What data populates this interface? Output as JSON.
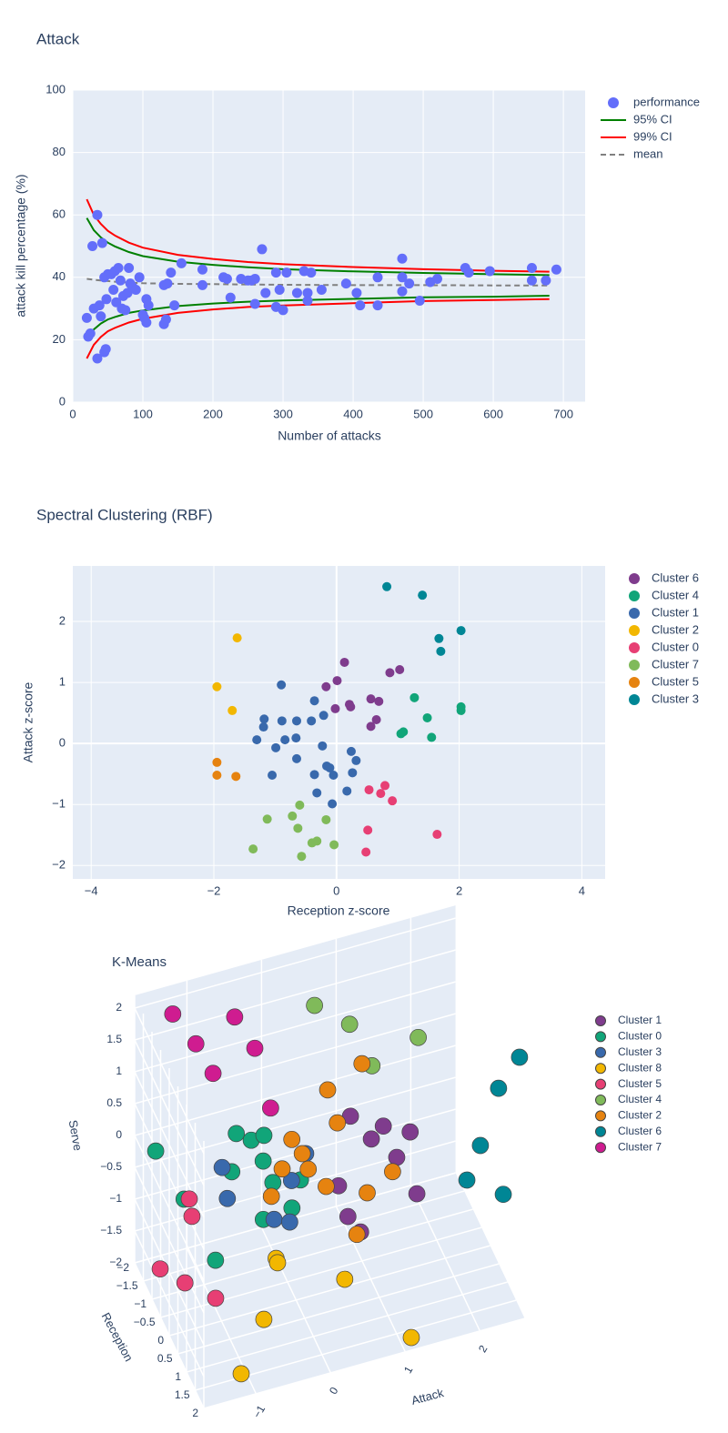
{
  "chart_data": [
    {
      "type": "scatter",
      "title": "Attack",
      "x_label": "Number of attacks",
      "y_label": "attack kill percentage (%)",
      "xlim": [
        0,
        731
      ],
      "ylim": [
        0,
        100
      ],
      "xticks": [
        0,
        100,
        200,
        300,
        400,
        500,
        600,
        700
      ],
      "yticks": [
        0,
        20,
        40,
        60,
        80,
        100
      ],
      "grid": true,
      "legend": "right",
      "series": [
        {
          "name": "performance",
          "color": "#636efa",
          "mode": "markers",
          "x": [
            20,
            22,
            25,
            28,
            30,
            35,
            35,
            38,
            40,
            42,
            45,
            45,
            47,
            48,
            50,
            55,
            58,
            60,
            62,
            65,
            68,
            70,
            72,
            75,
            78,
            80,
            82,
            85,
            90,
            95,
            100,
            102,
            105,
            105,
            108,
            130,
            130,
            133,
            135,
            140,
            145,
            155,
            185,
            185,
            215,
            220,
            225,
            240,
            250,
            255,
            260,
            260,
            270,
            275,
            290,
            290,
            295,
            300,
            305,
            320,
            330,
            335,
            335,
            340,
            355,
            390,
            405,
            410,
            435,
            435,
            470,
            470,
            470,
            480,
            495,
            510,
            520,
            560,
            565,
            595,
            655,
            655,
            675,
            690
          ],
          "values": [
            27,
            21,
            22,
            50,
            30,
            14,
            60,
            31,
            27.5,
            51,
            16,
            40,
            17,
            33,
            41,
            41,
            36,
            42,
            32,
            43,
            39,
            30,
            34,
            29.5,
            35,
            43,
            38,
            37,
            36,
            40,
            28,
            27,
            25.5,
            33,
            31,
            37.5,
            25,
            26.5,
            38,
            41.5,
            31,
            44.5,
            37.5,
            42.5,
            40,
            39.5,
            33.5,
            39.5,
            39,
            39,
            39.5,
            31.5,
            49,
            35,
            41.5,
            30.5,
            36,
            29.5,
            41.5,
            35,
            42,
            35,
            32.5,
            41.5,
            36,
            38,
            35,
            31,
            40,
            31,
            46,
            40,
            35.5,
            38,
            32.5,
            38.5,
            39.5,
            43,
            41.5,
            42,
            43,
            39,
            39,
            42.5
          ]
        },
        {
          "name": "95% CI",
          "color": "green",
          "mode": "lines",
          "x": [
            20,
            30,
            40,
            50,
            60,
            80,
            100,
            150,
            200,
            250,
            300,
            400,
            500,
            600,
            680
          ],
          "values": [
            59,
            55.1,
            52.8,
            51.1,
            49.9,
            48.1,
            46.8,
            45,
            44,
            43.2,
            42.6,
            41.9,
            41.4,
            41,
            40.7
          ],
          "lower": [
            20,
            23.3,
            25.2,
            26.5,
            27.3,
            28.6,
            29.4,
            30.8,
            31.6,
            32.2,
            32.6,
            33.1,
            33.6,
            33.8,
            34.1
          ]
        },
        {
          "name": "99% CI",
          "color": "red",
          "mode": "lines",
          "x": [
            20,
            30,
            40,
            50,
            60,
            80,
            100,
            150,
            200,
            250,
            300,
            400,
            500,
            600,
            680
          ],
          "values": [
            65,
            60,
            57.1,
            54.9,
            53.4,
            51.1,
            49.5,
            47.2,
            45.9,
            44.9,
            44.2,
            43.3,
            42.6,
            42.1,
            41.8
          ],
          "lower": [
            14,
            18.4,
            20.9,
            22.7,
            23.8,
            25.5,
            26.7,
            28.6,
            29.7,
            30.5,
            31,
            31.7,
            32.4,
            32.7,
            33
          ]
        },
        {
          "name": "mean",
          "color": "gray",
          "mode": "lines",
          "dash": true,
          "x": [
            20,
            30,
            40,
            50,
            60,
            80,
            100,
            150,
            200,
            250,
            300,
            400,
            500,
            600,
            680
          ],
          "values": [
            39.5,
            39.2,
            39,
            38.8,
            38.6,
            38.3,
            38.1,
            37.9,
            37.8,
            37.7,
            37.6,
            37.5,
            37.5,
            37.4,
            37.4
          ]
        }
      ]
    },
    {
      "type": "scatter",
      "title": "Spectral Clustering (RBF)",
      "x_label": "Reception z-score",
      "y_label": "Attack z-score",
      "xlim": [
        -4.3,
        4.38
      ],
      "ylim": [
        -2.22,
        2.91
      ],
      "xticks": [
        {
          "value": -4,
          "label": "−4"
        },
        {
          "value": -2,
          "label": "−2"
        },
        0,
        2,
        4
      ],
      "yticks": [
        {
          "value": -2,
          "label": "−2"
        },
        {
          "value": -1,
          "label": "−1"
        },
        0,
        1,
        2
      ],
      "grid": true,
      "legend": "right",
      "series": [
        {
          "name": "Cluster 6",
          "color": "#7F3C8D",
          "mode": "markers",
          "x": [
            0.13,
            -0.17,
            0.01,
            -0.02,
            0.21,
            0.23,
            0.56,
            0.69,
            0.87,
            1.03,
            0.65,
            0.56
          ],
          "values": [
            1.33,
            0.93,
            1.03,
            0.57,
            0.64,
            0.6,
            0.73,
            0.69,
            1.16,
            1.21,
            0.39,
            0.28
          ]
        },
        {
          "name": "Cluster 4",
          "color": "#11A579",
          "mode": "markers",
          "x": [
            1.27,
            2.03,
            2.03,
            1.48,
            1.05,
            1.09,
            1.55
          ],
          "values": [
            0.75,
            0.6,
            0.54,
            0.42,
            0.16,
            0.19,
            0.1
          ]
        },
        {
          "name": "Cluster 1",
          "color": "#3969AC",
          "mode": "markers",
          "x": [
            -0.9,
            -0.36,
            -1.18,
            -1.19,
            -0.89,
            -0.65,
            -0.41,
            -0.21,
            -1.3,
            -0.99,
            -0.84,
            -0.66,
            -0.23,
            -0.65,
            0.24,
            0.32,
            -0.16,
            -0.11,
            -0.05,
            -0.36,
            0.26,
            -1.05,
            -0.32,
            0.17,
            -0.07
          ],
          "values": [
            0.96,
            0.7,
            0.4,
            0.27,
            0.37,
            0.37,
            0.37,
            0.46,
            0.06,
            -0.07,
            0.06,
            0.09,
            -0.04,
            -0.25,
            -0.13,
            -0.28,
            -0.37,
            -0.4,
            -0.52,
            -0.51,
            -0.48,
            -0.52,
            -0.81,
            -0.78,
            -0.99
          ]
        },
        {
          "name": "Cluster 2",
          "color": "#F2B701",
          "mode": "markers",
          "x": [
            -1.62,
            -1.95,
            -1.7
          ],
          "values": [
            1.73,
            0.93,
            0.54
          ]
        },
        {
          "name": "Cluster 0",
          "color": "#E73F74",
          "mode": "markers",
          "x": [
            0.53,
            0.72,
            0.79,
            0.91,
            0.51,
            0.48,
            1.64
          ],
          "values": [
            -0.76,
            -0.82,
            -0.69,
            -0.94,
            -1.42,
            -1.78,
            -1.49
          ]
        },
        {
          "name": "Cluster 7",
          "color": "#80BA5A",
          "mode": "markers",
          "x": [
            -0.6,
            -0.72,
            -0.17,
            -1.13,
            -0.63,
            -0.32,
            -0.4,
            -0.04,
            -1.36,
            -0.57
          ],
          "values": [
            -1.01,
            -1.19,
            -1.25,
            -1.24,
            -1.39,
            -1.6,
            -1.63,
            -1.66,
            -1.73,
            -1.85
          ]
        },
        {
          "name": "Cluster 5",
          "color": "#E68310",
          "mode": "markers",
          "x": [
            -1.95,
            -1.95,
            -1.64
          ],
          "values": [
            -0.31,
            -0.52,
            -0.54
          ]
        },
        {
          "name": "Cluster 3",
          "color": "#008695",
          "mode": "markers",
          "x": [
            0.82,
            1.4,
            1.67,
            1.7,
            2.03
          ],
          "values": [
            2.57,
            2.43,
            1.72,
            1.51,
            1.85
          ]
        }
      ]
    },
    {
      "type": "scatter3d",
      "title": "K-Means",
      "x_label": "Attack",
      "y_label": "Reception",
      "z_label": "Serve",
      "xlim": [
        -1.7,
        2.6
      ],
      "ylim": [
        -2,
        2
      ],
      "zlim": [
        -2,
        2.2
      ],
      "xticks": [
        {
          "value": -1,
          "label": "−1"
        },
        0,
        1,
        2
      ],
      "yticks": [
        {
          "value": -2,
          "label": "−2"
        },
        {
          "value": -1.5,
          "label": "−1.5"
        },
        {
          "value": -1,
          "label": "−1"
        },
        {
          "value": -0.5,
          "label": "−0.5"
        },
        0,
        0.5,
        1,
        1.5,
        2
      ],
      "zticks": [
        {
          "value": -2,
          "label": "−2"
        },
        {
          "value": -1.5,
          "label": "−1.5"
        },
        {
          "value": -1,
          "label": "−1"
        },
        {
          "value": -0.5,
          "label": "−0.5"
        },
        0,
        0.5,
        1,
        1.5,
        2
      ],
      "grid": true,
      "legend": "right",
      "series": [
        {
          "name": "Cluster 1",
          "color": "#7F3C8D",
          "x": [
            0.96,
            1.24,
            1.4,
            1.76,
            1.58,
            0.8,
            0.81,
            0.98,
            1.85
          ],
          "y": [
            -1,
            -1,
            -1,
            -1,
            -1,
            -1,
            -0.5,
            -0.5,
            -1
          ],
          "z": [
            0,
            -0.45,
            -0.3,
            -0.51,
            -0.85,
            -1.04,
            -1.24,
            -1.54,
            -1.51
          ]
        },
        {
          "name": "Cluster 0",
          "color": "#11A579",
          "x": [
            -1.65,
            -1.27,
            -1.08,
            -0.57,
            -0.37,
            -0.2,
            -0.21,
            -0.63,
            -0.44,
            0.06,
            0.29,
            -0.08
          ],
          "y": [
            -1,
            -1,
            0,
            -1,
            -1,
            -1,
            -1,
            -1,
            0,
            -0.5,
            -1,
            -1
          ],
          "z": [
            0.31,
            -0.57,
            -1.02,
            0.23,
            0.06,
            0.08,
            -0.32,
            -0.35,
            -0.59,
            -0.86,
            -0.78,
            -0.7
          ]
        },
        {
          "name": "Cluster 3",
          "color": "#3969AC",
          "x": [
            -0.76,
            -0.69,
            -0.18,
            0.03,
            0.36,
            0.17
          ],
          "y": [
            -1,
            -1,
            -0.5,
            -0.5,
            -1,
            -1
          ],
          "z": [
            -0.24,
            -0.75,
            -0.96,
            -1.07,
            -0.39,
            -0.75
          ]
        },
        {
          "name": "Cluster 8",
          "color": "#F2B701",
          "x": [
            -0.5,
            -0.55,
            -0.78,
            -1.2,
            0.42,
            1.08
          ],
          "y": [
            1,
            1.3,
            1.5,
            2,
            1,
            2
          ],
          "z": [
            -0.61,
            -0.49,
            -1.19,
            -1.62,
            -1.24,
            -1.8
          ]
        },
        {
          "name": "Cluster 5",
          "color": "#E73F74",
          "x": [
            -1.59,
            -1.49,
            -1.31,
            -1.28,
            -1.2
          ],
          "y": [
            -1,
            0,
            1,
            -0.5,
            -1
          ],
          "z": [
            -1.56,
            -1.24,
            -0.97,
            -0.55,
            -0.59
          ]
        },
        {
          "name": "Cluster 4",
          "color": "#80BA5A",
          "x": [
            0.71,
            1.18,
            2.1,
            1.48
          ],
          "y": [
            -2,
            -2,
            -2,
            -2
          ],
          "z": [
            1.25,
            0.8,
            0.29,
            0.05
          ]
        },
        {
          "name": "Cluster 2",
          "color": "#E68310",
          "x": [
            1.23,
            0.77,
            0.9,
            0.29,
            0.43,
            0.16,
            0.51,
            0.75,
            1.3,
            1.64,
            0.93,
            -0.1
          ],
          "y": [
            -1.5,
            -1.5,
            -1.5,
            -1.5,
            -1.5,
            -1.5,
            -1.5,
            -1.5,
            -1.5,
            -1.5,
            -0.5,
            -1
          ],
          "z": [
            0.45,
            0.19,
            -0.37,
            -0.43,
            -0.7,
            -0.85,
            -0.97,
            -1.32,
            -1.6,
            -1.38,
            -1.56,
            -0.91
          ]
        },
        {
          "name": "Cluster 6",
          "color": "#008695",
          "x": [
            2.6,
            2.5,
            2.4,
            2.3,
            2.6
          ],
          "y": [
            1.7,
            0.92,
            0.3,
            -0.05,
            0.76
          ],
          "z": [
            1.93,
            1.03,
            -0.19,
            -0.9,
            -0.76
          ]
        },
        {
          "name": "Cluster 7",
          "color": "#CF1C90",
          "x": [
            -1.19,
            -0.88,
            -0.36,
            -0.09,
            -0.65,
            -0.11
          ],
          "y": [
            -2,
            -2,
            -2,
            -2,
            -2,
            -1
          ],
          "z": [
            1.74,
            1.17,
            1.42,
            0.84,
            0.63,
            0.48
          ]
        }
      ]
    }
  ]
}
